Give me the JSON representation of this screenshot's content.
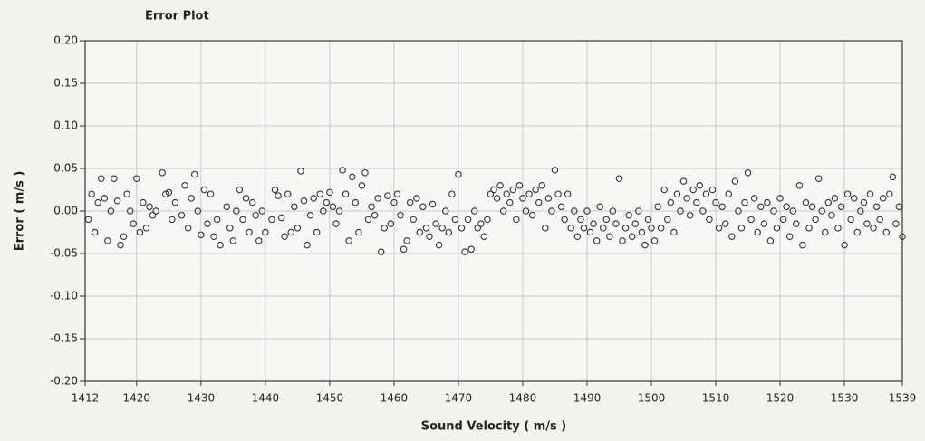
{
  "chart_data": {
    "type": "scatter",
    "title": "Error Plot",
    "x_label": "Sound Velocity ( m/s )",
    "y_label": "Error ( m/s )",
    "color": "#333333",
    "grid": true,
    "xlim": [
      1412,
      1539
    ],
    "ylim": [
      -0.2,
      0.2
    ],
    "xticks": [
      1412,
      1420,
      1430,
      1440,
      1450,
      1460,
      1470,
      1480,
      1490,
      1500,
      1510,
      1520,
      1530,
      1539
    ],
    "yticks": [
      {
        "value": 0.2,
        "label": "0.20"
      },
      {
        "value": 0.15,
        "label": "0.15"
      },
      {
        "value": 0.1,
        "label": "0.10"
      },
      {
        "value": 0.05,
        "label": "0.05"
      },
      {
        "value": 0,
        "label": "0.00"
      },
      {
        "value": -0.05,
        "label": "-0.05"
      },
      {
        "value": -0.1,
        "label": "-0.10"
      },
      {
        "value": -0.15,
        "label": "-0.15"
      },
      {
        "value": -0.2,
        "label": "-0.20"
      }
    ],
    "x": [
      1412.5,
      1413,
      1413.5,
      1414,
      1414.5,
      1415,
      1415.5,
      1416,
      1416.5,
      1417,
      1417.5,
      1418,
      1418.5,
      1419,
      1419.5,
      1420,
      1420.5,
      1421,
      1421.5,
      1422,
      1422.5,
      1423,
      1424,
      1424.5,
      1425,
      1425.5,
      1426,
      1427,
      1427.5,
      1428,
      1428.5,
      1429,
      1429.5,
      1430,
      1430.5,
      1431,
      1431.5,
      1432,
      1432.5,
      1433,
      1434,
      1434.5,
      1435,
      1435.5,
      1436,
      1436.5,
      1437,
      1437.5,
      1438,
      1438.5,
      1439,
      1439.5,
      1440,
      1441,
      1441.5,
      1442,
      1442.5,
      1443,
      1443.5,
      1444,
      1444.5,
      1445,
      1445.5,
      1446,
      1446.5,
      1447,
      1447.5,
      1448,
      1448.5,
      1449,
      1449.5,
      1450,
      1450.5,
      1451,
      1451.5,
      1452,
      1452.5,
      1453,
      1453.5,
      1454,
      1454.5,
      1455,
      1455.5,
      1456,
      1456.5,
      1457,
      1457.5,
      1458,
      1458.5,
      1459,
      1459.5,
      1460,
      1460.5,
      1461,
      1461.5,
      1462,
      1462.5,
      1463,
      1463.5,
      1464,
      1464.5,
      1465,
      1465.5,
      1466,
      1466.5,
      1467,
      1467.5,
      1468,
      1468.5,
      1469,
      1469.5,
      1470,
      1470.5,
      1471,
      1471.5,
      1472,
      1472.5,
      1473,
      1473.5,
      1474,
      1474.5,
      1475,
      1475.5,
      1476,
      1476.5,
      1477,
      1477.5,
      1478,
      1478.5,
      1479,
      1479.5,
      1480,
      1480.5,
      1481,
      1481.5,
      1482,
      1482.5,
      1483,
      1483.5,
      1484,
      1484.5,
      1485,
      1485.5,
      1486,
      1486.5,
      1487,
      1487.5,
      1488,
      1488.5,
      1489,
      1489.5,
      1490,
      1490.5,
      1491,
      1491.5,
      1492,
      1492.5,
      1493,
      1493.5,
      1494,
      1494.5,
      1495,
      1495.5,
      1496,
      1496.5,
      1497,
      1497.5,
      1498,
      1498.5,
      1499,
      1499.5,
      1500,
      1500.5,
      1501,
      1501.5,
      1502,
      1502.5,
      1503,
      1503.5,
      1504,
      1504.5,
      1505,
      1505.5,
      1506,
      1506.5,
      1507,
      1507.5,
      1508,
      1508.5,
      1509,
      1509.5,
      1510,
      1510.5,
      1511,
      1511.5,
      1512,
      1512.5,
      1513,
      1513.5,
      1514,
      1514.5,
      1515,
      1515.5,
      1516,
      1516.5,
      1517,
      1517.5,
      1518,
      1518.5,
      1519,
      1519.5,
      1520,
      1520.5,
      1521,
      1521.5,
      1522,
      1522.5,
      1523,
      1523.5,
      1524,
      1524.5,
      1525,
      1525.5,
      1526,
      1526.5,
      1527,
      1527.5,
      1528,
      1528.5,
      1529,
      1529.5,
      1530,
      1530.5,
      1531,
      1531.5,
      1532,
      1532.5,
      1533,
      1533.5,
      1534,
      1534.5,
      1535,
      1535.5,
      1536,
      1536.5,
      1537,
      1537.5,
      1538,
      1538.5,
      1539
    ],
    "values": [
      -0.01,
      0.02,
      -0.025,
      0.01,
      0.038,
      0.015,
      -0.035,
      0,
      0.038,
      0.012,
      -0.04,
      -0.03,
      0.02,
      0,
      -0.015,
      0.038,
      -0.025,
      0.01,
      -0.02,
      0.005,
      -0.005,
      0,
      0.045,
      0.02,
      0.022,
      -0.01,
      0.01,
      -0.005,
      0.03,
      -0.02,
      0.015,
      0.043,
      0,
      -0.028,
      0.025,
      -0.015,
      0.02,
      -0.03,
      -0.01,
      -0.04,
      0.005,
      -0.02,
      -0.035,
      0,
      0.025,
      -0.01,
      0.015,
      -0.025,
      0.01,
      -0.005,
      -0.035,
      0,
      -0.025,
      -0.01,
      0.025,
      0.018,
      -0.008,
      -0.03,
      0.02,
      -0.025,
      0.005,
      -0.02,
      0.047,
      0.012,
      -0.04,
      -0.005,
      0.015,
      -0.025,
      0.02,
      0,
      0.01,
      0.022,
      0.005,
      -0.015,
      0,
      0.048,
      0.02,
      -0.035,
      0.04,
      0.01,
      -0.025,
      0.03,
      0.045,
      -0.01,
      0.005,
      -0.005,
      0.015,
      -0.048,
      -0.02,
      0.018,
      -0.015,
      0.01,
      0.02,
      -0.005,
      -0.045,
      -0.035,
      0.01,
      -0.01,
      0.015,
      -0.025,
      0.005,
      -0.02,
      -0.03,
      0.008,
      -0.015,
      -0.04,
      -0.02,
      0,
      -0.025,
      0.02,
      -0.01,
      0.043,
      -0.02,
      -0.048,
      -0.01,
      -0.045,
      0,
      -0.02,
      -0.015,
      -0.03,
      -0.01,
      0.02,
      0.025,
      0.015,
      0.03,
      0,
      0.02,
      0.01,
      0.025,
      -0.01,
      0.03,
      0.015,
      0,
      0.02,
      -0.005,
      0.025,
      0.01,
      0.03,
      -0.02,
      0.015,
      0,
      0.048,
      0.02,
      0.005,
      -0.01,
      0.02,
      -0.02,
      0,
      -0.03,
      -0.01,
      -0.02,
      0,
      -0.025,
      -0.015,
      -0.035,
      0.005,
      -0.02,
      -0.01,
      -0.03,
      0,
      -0.015,
      0.038,
      -0.035,
      -0.02,
      -0.005,
      -0.03,
      -0.015,
      0,
      -0.025,
      -0.04,
      -0.01,
      -0.02,
      -0.035,
      0.005,
      -0.02,
      0.025,
      -0.01,
      0.01,
      -0.025,
      0.02,
      0,
      0.035,
      0.015,
      -0.005,
      0.025,
      0.01,
      0.03,
      0,
      0.02,
      -0.01,
      0.025,
      0.01,
      -0.02,
      0.005,
      -0.015,
      0.02,
      -0.03,
      0.035,
      0,
      -0.02,
      0.01,
      0.045,
      -0.01,
      0.015,
      -0.025,
      0.005,
      -0.015,
      0.01,
      -0.035,
      0,
      -0.02,
      0.015,
      -0.01,
      0.005,
      -0.03,
      0,
      -0.015,
      0.03,
      -0.04,
      0.01,
      -0.02,
      0.005,
      -0.01,
      0.038,
      0,
      -0.025,
      0.01,
      -0.005,
      0.015,
      -0.02,
      0.005,
      -0.04,
      0.02,
      -0.01,
      0.015,
      -0.025,
      0,
      0.01,
      -0.015,
      0.02,
      -0.02,
      0.005,
      -0.01,
      0.015,
      -0.025,
      0.02,
      0.04,
      -0.015,
      0.005,
      -0.03
    ]
  }
}
